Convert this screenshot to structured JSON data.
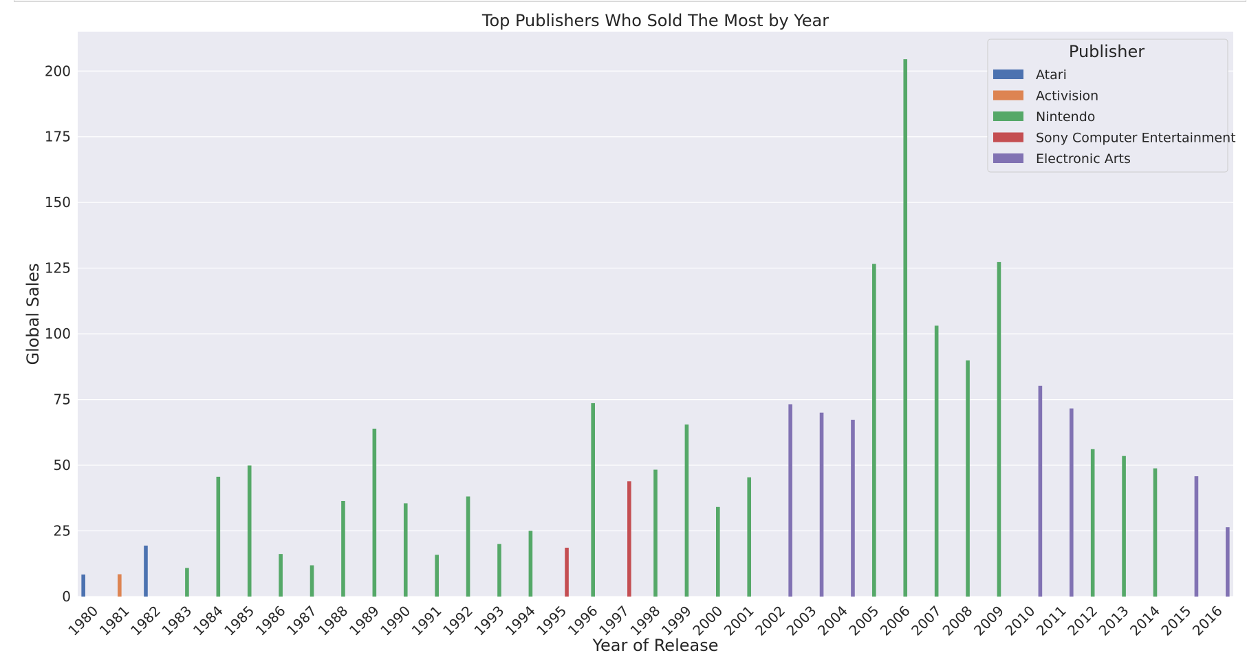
{
  "chart_data": {
    "type": "bar",
    "title": "Top Publishers Who Sold The Most by Year",
    "xlabel": "Year of Release",
    "ylabel": "Global Sales",
    "ylim": [
      0,
      215
    ],
    "yticks": [
      0,
      25,
      50,
      75,
      100,
      125,
      150,
      175,
      200
    ],
    "grid": true,
    "legend": {
      "title": "Publisher",
      "placement": "top-right"
    },
    "categories": [
      "1980",
      "1981",
      "1982",
      "1983",
      "1984",
      "1985",
      "1986",
      "1987",
      "1988",
      "1989",
      "1990",
      "1991",
      "1992",
      "1993",
      "1994",
      "1995",
      "1996",
      "1997",
      "1998",
      "1999",
      "2000",
      "2001",
      "2002",
      "2003",
      "2004",
      "2005",
      "2006",
      "2007",
      "2008",
      "2009",
      "2010",
      "2011",
      "2012",
      "2013",
      "2014",
      "2015",
      "2016"
    ],
    "series": [
      {
        "name": "Atari",
        "color": "#4c72b0",
        "values": [
          8.4,
          null,
          19.4,
          null,
          null,
          null,
          null,
          null,
          null,
          null,
          null,
          null,
          null,
          null,
          null,
          null,
          null,
          null,
          null,
          null,
          null,
          null,
          null,
          null,
          null,
          null,
          null,
          null,
          null,
          null,
          null,
          null,
          null,
          null,
          null,
          null,
          null
        ]
      },
      {
        "name": "Activision",
        "color": "#dd8452",
        "values": [
          null,
          8.5,
          null,
          null,
          null,
          null,
          null,
          null,
          null,
          null,
          null,
          null,
          null,
          null,
          null,
          null,
          null,
          null,
          null,
          null,
          null,
          null,
          null,
          null,
          null,
          null,
          null,
          null,
          null,
          null,
          null,
          null,
          null,
          null,
          null,
          null,
          null
        ]
      },
      {
        "name": "Nintendo",
        "color": "#55a868",
        "values": [
          null,
          null,
          null,
          10.9,
          45.6,
          49.9,
          16.2,
          11.9,
          36.4,
          63.9,
          35.5,
          15.9,
          38.1,
          20.0,
          25.0,
          null,
          73.6,
          null,
          48.3,
          65.5,
          34.1,
          45.4,
          null,
          null,
          null,
          126.6,
          204.5,
          103.1,
          89.9,
          127.3,
          null,
          null,
          56.1,
          53.5,
          48.8,
          null,
          null
        ]
      },
      {
        "name": "Sony Computer Entertainment",
        "color": "#c44e52",
        "values": [
          null,
          null,
          null,
          null,
          null,
          null,
          null,
          null,
          null,
          null,
          null,
          null,
          null,
          null,
          null,
          18.6,
          null,
          43.9,
          null,
          null,
          null,
          null,
          null,
          null,
          null,
          null,
          null,
          null,
          null,
          null,
          null,
          null,
          null,
          null,
          null,
          null,
          null
        ]
      },
      {
        "name": "Electronic Arts",
        "color": "#8172b3",
        "values": [
          null,
          null,
          null,
          null,
          null,
          null,
          null,
          null,
          null,
          null,
          null,
          null,
          null,
          null,
          null,
          null,
          null,
          null,
          null,
          null,
          null,
          null,
          73.2,
          70.0,
          67.3,
          null,
          null,
          null,
          null,
          null,
          80.2,
          71.6,
          null,
          null,
          null,
          45.8,
          26.4
        ]
      }
    ],
    "style": {
      "plot_bg": "#eaeaf2",
      "grid_color": "#ffffff",
      "text_color": "#262626"
    }
  }
}
